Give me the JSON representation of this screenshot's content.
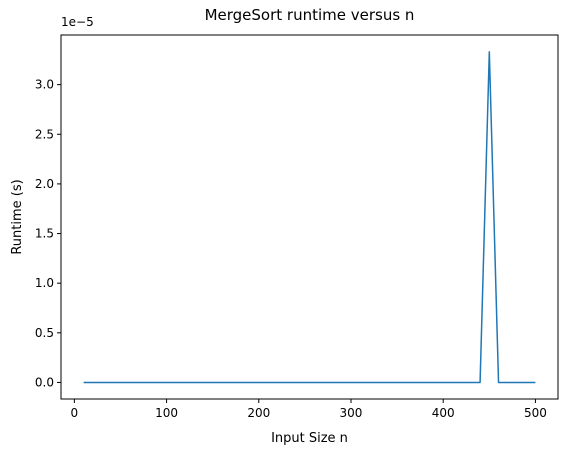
{
  "chart_data": {
    "type": "line",
    "title": "MergeSort runtime versus n",
    "xlabel": "Input Size n",
    "ylabel": "Runtime (s)",
    "y_offset_label": "1e−5",
    "xlim": [
      -14.5,
      524.5
    ],
    "ylim": [
      -0.1667,
      3.5
    ],
    "xticks": [
      0,
      100,
      200,
      300,
      400,
      500
    ],
    "xtick_labels": [
      "0",
      "100",
      "200",
      "300",
      "400",
      "500"
    ],
    "yticks": [
      0.0,
      0.5,
      1.0,
      1.5,
      2.0,
      2.5,
      3.0
    ],
    "ytick_labels": [
      "0.0",
      "0.5",
      "1.0",
      "1.5",
      "2.0",
      "2.5",
      "3.0"
    ],
    "grid": false,
    "series": [
      {
        "name": "runtime",
        "color": "#1f77b4",
        "x": [
          10,
          20,
          30,
          40,
          50,
          60,
          70,
          80,
          90,
          100,
          110,
          120,
          130,
          140,
          150,
          160,
          170,
          180,
          190,
          200,
          210,
          220,
          230,
          240,
          250,
          260,
          270,
          280,
          290,
          300,
          310,
          320,
          330,
          340,
          350,
          360,
          370,
          380,
          390,
          400,
          410,
          420,
          430,
          440,
          450,
          460,
          470,
          480,
          490,
          500
        ],
        "values": [
          0,
          0,
          0,
          0,
          0,
          0,
          0,
          0,
          0,
          0,
          0,
          0,
          0,
          0,
          0,
          0,
          0,
          0,
          0,
          0,
          0,
          0,
          0,
          0,
          0,
          0,
          0,
          0,
          0,
          0,
          0,
          0,
          0,
          0,
          0,
          0,
          0,
          0,
          0,
          0,
          0,
          0,
          0,
          0,
          3.33,
          0,
          0,
          0,
          0,
          0
        ]
      }
    ]
  }
}
